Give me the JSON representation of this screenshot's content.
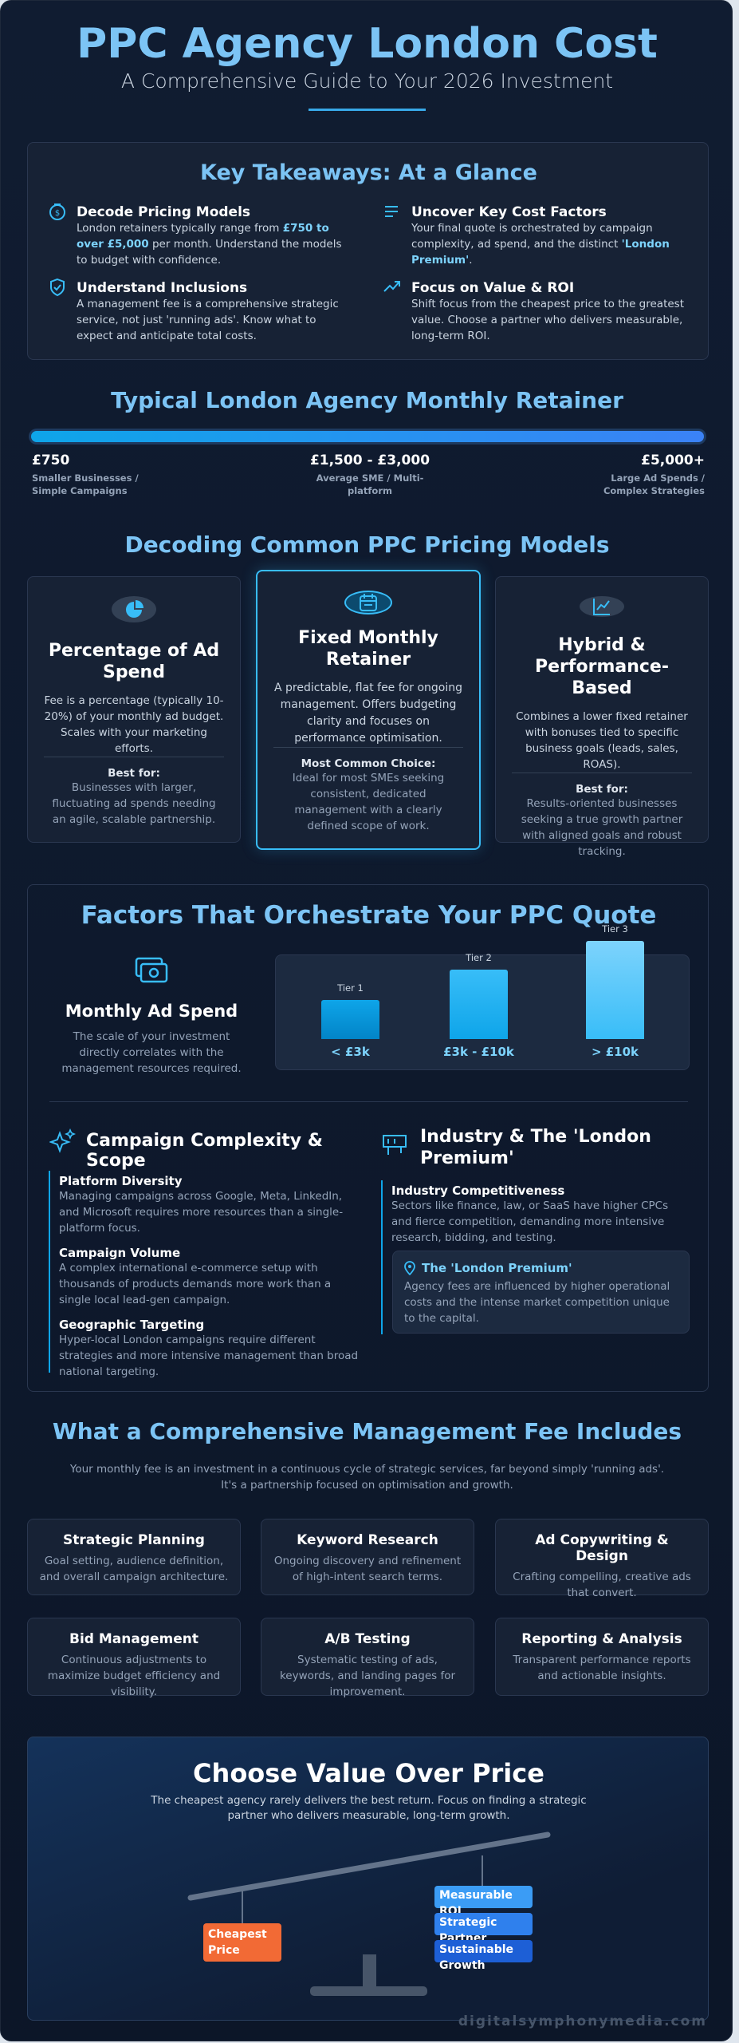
{
  "header": {
    "title": "PPC Agency London Cost",
    "subtitle": "A Comprehensive Guide to Your 2026 Investment"
  },
  "takeaways": {
    "title": "Key Takeaways: At a Glance",
    "items": [
      {
        "title": "Decode Pricing Models",
        "text": [
          "London retainers typically range from ",
          "£750 to over £5,000",
          " per month. Understand the models to budget with confidence."
        ]
      },
      {
        "title": "Uncover Key Cost Factors",
        "text": [
          "Your final quote is orchestrated by campaign complexity, ad spend, and the distinct ",
          "'London Premium'",
          "."
        ]
      },
      {
        "title": "Understand Inclusions",
        "text": [
          "A management fee is a comprehensive strategic service, not just 'running ads'. Know what to expect and anticipate total costs."
        ]
      },
      {
        "title": "Focus on Value & ROI",
        "text": [
          "Shift focus from the cheapest price to the greatest value. Choose a partner who delivers measurable, long-term ROI."
        ]
      }
    ]
  },
  "retainer": {
    "title": "Typical London Agency Monthly Retainer",
    "points": [
      {
        "value": "£750",
        "label": "Smaller Businesses / Simple Campaigns"
      },
      {
        "value": "£1,500 - £3,000",
        "label": "Average SME / Multi-platform"
      },
      {
        "value": "£5,000+",
        "label": "Large Ad Spends / Complex Strategies"
      }
    ]
  },
  "models": {
    "title": "Decoding Common PPC Pricing Models",
    "cards": [
      {
        "title": "Percentage of Ad Spend",
        "text": "Fee is a percentage (typically 10-20%) of your monthly ad budget. Scales with your marketing efforts.",
        "best_label": "Best for:",
        "best_text": "Businesses with larger, fluctuating ad spends needing an agile, scalable partnership."
      },
      {
        "title": "Fixed Monthly Retainer",
        "text": "A predictable, flat fee for ongoing management. Offers budgeting clarity and focuses on performance optimisation.",
        "best_label": "Most Common Choice:",
        "best_text": "Ideal for most SMEs seeking consistent, dedicated management with a clearly defined scope of work."
      },
      {
        "title": "Hybrid & Performance-Based",
        "text": "Combines a lower fixed retainer with bonuses tied to specific business goals (leads, sales, ROAS).",
        "best_label": "Best for:",
        "best_text": "Results-oriented businesses seeking a true growth partner with aligned goals and robust tracking."
      }
    ]
  },
  "factors": {
    "title": "Factors That Orchestrate Your PPC Quote",
    "ad_spend": {
      "title": "Monthly Ad Spend",
      "text": "The scale of your investment directly correlates with the management resources required."
    },
    "tiers": [
      {
        "label": "Tier 1",
        "range": "< £3k"
      },
      {
        "label": "Tier 2",
        "range": "£3k - £10k"
      },
      {
        "label": "Tier 3",
        "range": "> £10k"
      }
    ],
    "complexity": {
      "title": "Campaign Complexity & Scope",
      "items": [
        {
          "title": "Platform Diversity",
          "text": "Managing campaigns across Google, Meta, LinkedIn, and Microsoft requires more resources than a single-platform focus."
        },
        {
          "title": "Campaign Volume",
          "text": "A complex international e-commerce setup with thousands of products demands more work than a single local lead-gen campaign."
        },
        {
          "title": "Geographic Targeting",
          "text": "Hyper-local London campaigns require different strategies and more intensive management than broad national targeting."
        }
      ]
    },
    "industry": {
      "title": "Industry & The 'London Premium'",
      "items": [
        {
          "title": "Industry Competitiveness",
          "text": "Sectors like finance, law, or SaaS have higher CPCs and fierce competition, demanding more intensive research, bidding, and testing."
        }
      ],
      "premium": {
        "title": "The 'London Premium'",
        "text": "Agency fees are influenced by higher operational costs and the intense market competition unique to the capital."
      }
    }
  },
  "includes": {
    "title": "What a Comprehensive Management Fee Includes",
    "intro": [
      "Your monthly fee is an investment in a continuous cycle of strategic services, far beyond simply 'running ads'.",
      "It's a partnership focused on optimisation and growth."
    ],
    "services": [
      {
        "title": "Strategic Planning",
        "text": "Goal setting, audience definition, and overall campaign architecture."
      },
      {
        "title": "Keyword Research",
        "text": "Ongoing discovery and refinement of high-intent search terms."
      },
      {
        "title": "Ad Copywriting & Design",
        "text": "Crafting compelling, creative ads that convert."
      },
      {
        "title": "Bid Management",
        "text": "Continuous adjustments to maximize budget efficiency and visibility."
      },
      {
        "title": "A/B Testing",
        "text": "Systematic testing of ads, keywords, and landing pages for improvement."
      },
      {
        "title": "Reporting & Analysis",
        "text": "Transparent performance reports and actionable insights."
      }
    ]
  },
  "value": {
    "title": "Choose Value Over Price",
    "text": "The cheapest agency rarely delivers the best return. Focus on finding a strategic partner who delivers measurable, long-term growth.",
    "cheap": "Cheapest Price",
    "benefits": [
      "Measurable ROI",
      "Strategic Partner",
      "Sustainable Growth"
    ]
  },
  "footer": "digitalsymphonymedia.com"
}
